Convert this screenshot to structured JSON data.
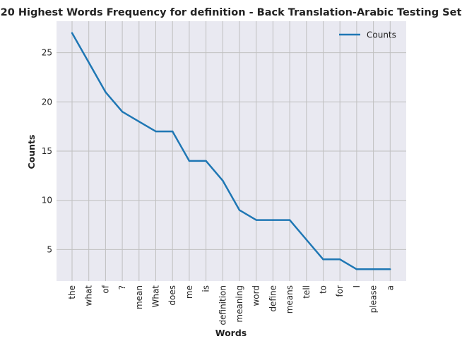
{
  "chart_data": {
    "type": "line",
    "title": "20 Highest Words Frequency for definition - Back Translation-Arabic Testing Set",
    "xlabel": "Words",
    "ylabel": "Counts",
    "categories": [
      "the",
      "what",
      "of",
      "?",
      "mean",
      "What",
      "does",
      "me",
      "is",
      "definition",
      "meaning",
      "word",
      "define",
      "means",
      "tell",
      "to",
      "for",
      "I",
      "please",
      "a"
    ],
    "series": [
      {
        "name": "Counts",
        "values": [
          27,
          24,
          21,
          19,
          18,
          17,
          17,
          14,
          14,
          12,
          9,
          8,
          8,
          8,
          6,
          4,
          4,
          3,
          3,
          3
        ]
      }
    ],
    "yticks": [
      5,
      10,
      15,
      20,
      25
    ],
    "ylim": [
      1.8,
      28.2
    ],
    "grid": true,
    "legend_position": "top-right",
    "line_color": "#1f77b4",
    "plot_background": "#e9e9f1",
    "grid_color": "#c0c0c0"
  }
}
